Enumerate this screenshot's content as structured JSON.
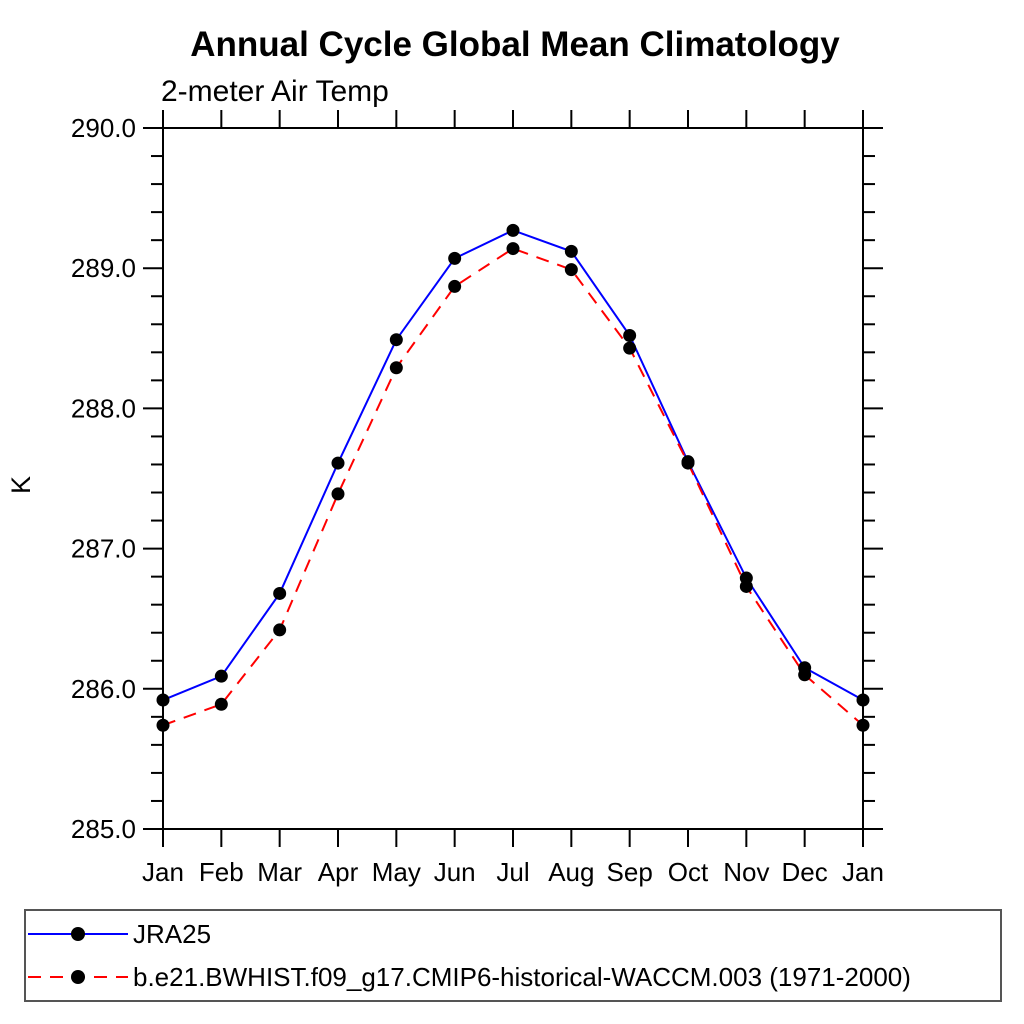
{
  "chart_data": {
    "type": "line",
    "title": "Annual Cycle Global Mean Climatology",
    "subtitle": "2-meter Air Temp",
    "ylabel": "K",
    "xlabel": "",
    "categories": [
      "Jan",
      "Feb",
      "Mar",
      "Apr",
      "May",
      "Jun",
      "Jul",
      "Aug",
      "Sep",
      "Oct",
      "Nov",
      "Dec",
      "Jan"
    ],
    "ylim": [
      285.0,
      290.0
    ],
    "y_major_tick_interval": 1.0,
    "y_minor_tick_interval": 0.2,
    "y_tick_labels": [
      "285.0",
      "286.0",
      "287.0",
      "288.0",
      "289.0",
      "290.0"
    ],
    "grid": false,
    "legend_position": "bottom",
    "axis_color": "#000000",
    "background_color": "#ffffff",
    "legend_border_color": "#555555",
    "series": [
      {
        "name": "JRA25",
        "color": "#0000ff",
        "line_style": "solid",
        "marker": "filled-circle",
        "marker_color": "#000000",
        "values": [
          285.92,
          286.09,
          286.68,
          287.61,
          288.49,
          289.07,
          289.27,
          289.12,
          288.52,
          287.62,
          286.79,
          286.15,
          285.92
        ]
      },
      {
        "name": "b.e21.BWHIST.f09_g17.CMIP6-historical-WACCM.003 (1971-2000)",
        "color": "#ff0000",
        "line_style": "dashed",
        "marker": "filled-circle",
        "marker_color": "#000000",
        "values": [
          285.74,
          285.89,
          286.42,
          287.39,
          288.29,
          288.87,
          289.14,
          288.99,
          288.43,
          287.61,
          286.73,
          286.1,
          285.74
        ]
      }
    ]
  }
}
